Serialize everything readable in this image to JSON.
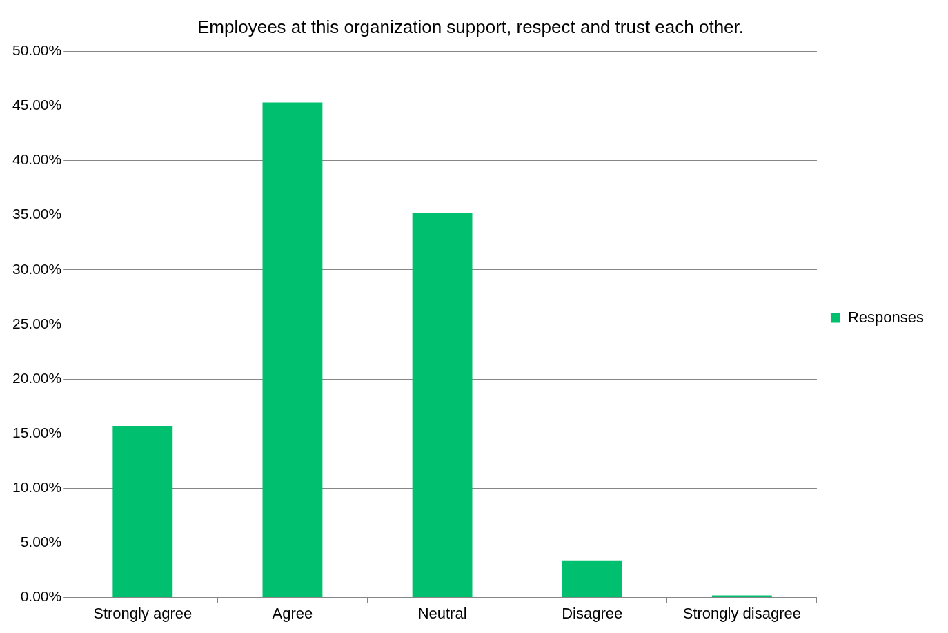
{
  "chart_data": {
    "type": "bar",
    "title": "Employees at this organization support, respect and trust each other.",
    "categories": [
      "Strongly agree",
      "Agree",
      "Neutral",
      "Disagree",
      "Strongly disagree"
    ],
    "series": [
      {
        "name": "Responses",
        "color": "#00bf6f",
        "values": [
          15.7,
          45.3,
          35.2,
          3.4,
          0.2
        ]
      }
    ],
    "ylim": [
      0,
      50
    ],
    "yticks": [
      {
        "value": 0,
        "label": "0.00%"
      },
      {
        "value": 5,
        "label": "5.00%"
      },
      {
        "value": 10,
        "label": "10.00%"
      },
      {
        "value": 15,
        "label": "15.00%"
      },
      {
        "value": 20,
        "label": "20.00%"
      },
      {
        "value": 25,
        "label": "25.00%"
      },
      {
        "value": 30,
        "label": "30.00%"
      },
      {
        "value": 35,
        "label": "35.00%"
      },
      {
        "value": 40,
        "label": "40.00%"
      },
      {
        "value": 45,
        "label": "45.00%"
      },
      {
        "value": 50,
        "label": "50.00%"
      }
    ],
    "grid": "y",
    "legend": "right"
  }
}
